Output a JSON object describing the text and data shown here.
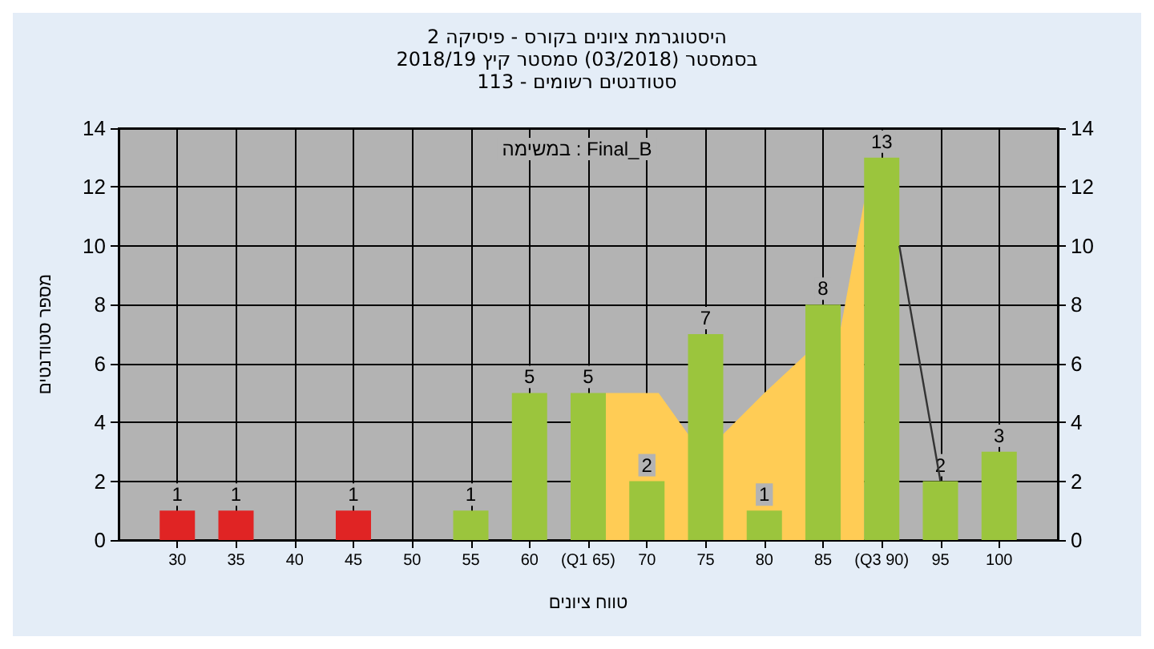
{
  "chart_data": {
    "type": "bar",
    "title": "היסטוגרמת ציונים בקורס - פיסיקה 2",
    "subtitle": "בסמסטר (03/2018) סמסטר קיץ 2018/19\nסטודנטים רשומים - 113",
    "xlabel": "טווח ציונים",
    "ylabel": "מספר סטודנטים",
    "annotations": [
      "במשימה : Final_B"
    ],
    "x": [
      30,
      35,
      40,
      45,
      50,
      55,
      60,
      65,
      70,
      75,
      80,
      85,
      90,
      95,
      100
    ],
    "series": [
      {
        "values": [
          1,
          1,
          null,
          1,
          null,
          1,
          5,
          5,
          2,
          7,
          1,
          8,
          13,
          2,
          3
        ],
        "value_labels": [
          "1",
          "1",
          null,
          "1",
          null,
          "1",
          "5",
          "5",
          "2",
          "7",
          "1",
          "8",
          "13",
          "2",
          "3"
        ],
        "colors": [
          "#e02424",
          "#e02424",
          "#e02424",
          "#e02424",
          "#9bc53d",
          "#9bc53d",
          "#9bc53d",
          "#9bc53d",
          "#9bc53d",
          "#9bc53d",
          "#9bc53d",
          "#9bc53d",
          "#9bc53d",
          "#9bc53d",
          "#9bc53d"
        ]
      },
      {
        "type": "area",
        "color": "#ffcc55",
        "x": [
          66.5,
          71,
          73.5,
          76.5,
          80,
          83.5,
          86.5,
          88.5
        ],
        "values": [
          5,
          5,
          3.6,
          3.6,
          5,
          6.3,
          7.2,
          11.5
        ]
      },
      {
        "type": "line",
        "color": "#333333",
        "x": [
          91.5,
          95
        ],
        "values": [
          10,
          2
        ]
      }
    ],
    "xlim": [
      25,
      105
    ],
    "xticks": [
      30,
      35,
      40,
      45,
      50,
      55,
      60,
      {
        "value": 65,
        "label": "(Q1 65)"
      },
      70,
      75,
      80,
      85,
      {
        "value": 90,
        "label": "(Q3 90)"
      },
      95,
      100
    ],
    "ylim": [
      0,
      14
    ],
    "yticks": [
      0,
      2,
      4,
      6,
      8,
      10,
      12,
      14
    ],
    "y2lim": [
      0,
      14
    ],
    "y2ticks": [
      0,
      2,
      4,
      6,
      8,
      10,
      12,
      14
    ],
    "grid": true
  }
}
